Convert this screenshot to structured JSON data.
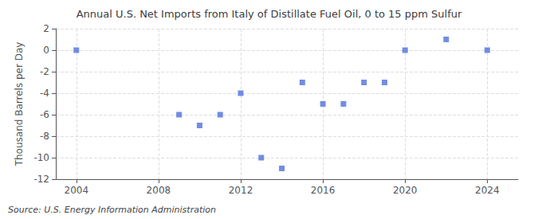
{
  "chart_data": {
    "type": "scatter",
    "title": "Annual U.S. Net Imports from Italy of Distillate Fuel Oil, 0 to 15 ppm Sulfur",
    "ylabel": "Thousand Barrels per Day",
    "annotations": [
      "Source: U.S. Energy Information Administration"
    ],
    "x": [
      2004,
      2009,
      2010,
      2011,
      2012,
      2013,
      2014,
      2015,
      2016,
      2017,
      2018,
      2019,
      2020,
      2022,
      2024
    ],
    "values": [
      0,
      -6,
      -7,
      -6,
      -4,
      -10,
      -11,
      -3,
      -5,
      -5,
      -3,
      -3,
      0,
      1,
      0
    ],
    "marker": "square",
    "xlim": [
      2003,
      2025.5
    ],
    "xticks": [
      2004,
      2008,
      2012,
      2016,
      2020,
      2024
    ],
    "ylim": [
      -12,
      2
    ],
    "yticks": [
      -12,
      -10,
      -8,
      -6,
      -4,
      -2,
      0,
      2
    ],
    "grid": true
  }
}
